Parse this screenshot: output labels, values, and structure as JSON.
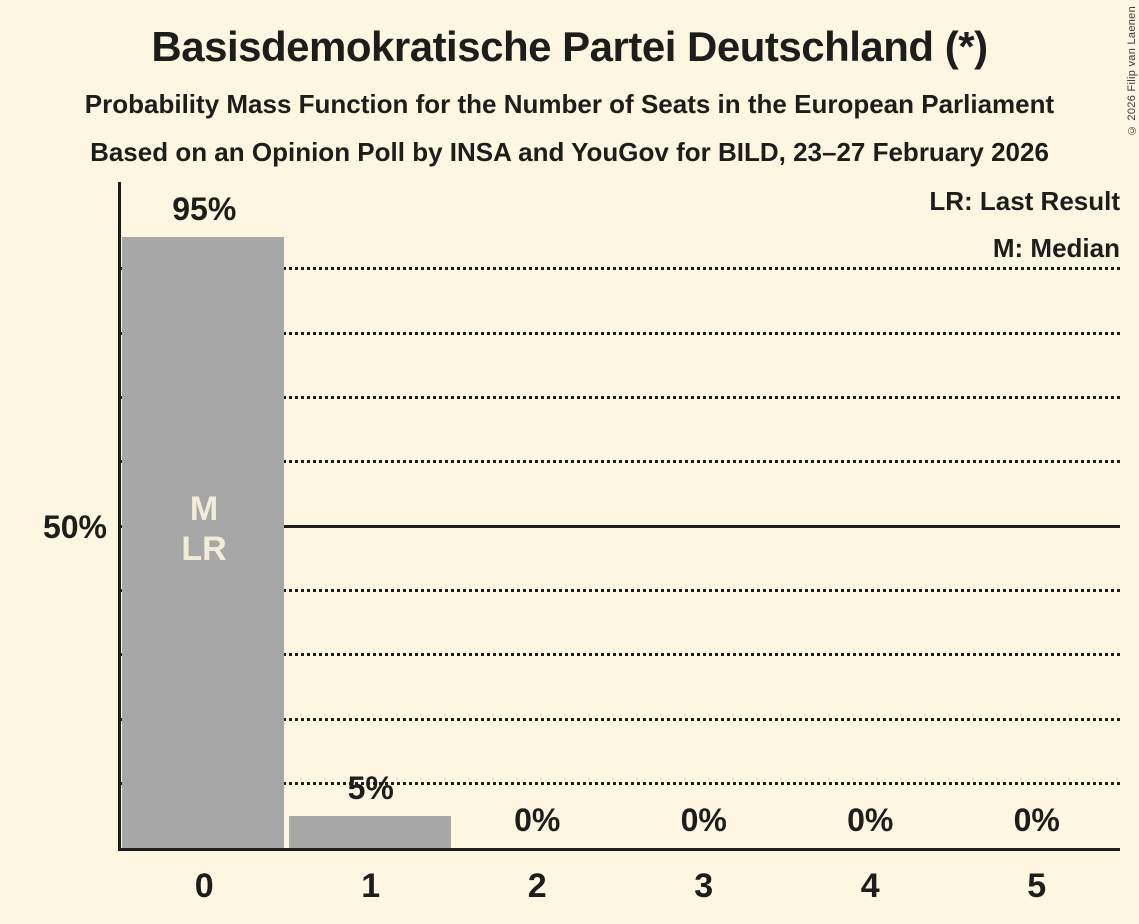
{
  "header": {
    "title": "Basisdemokratische Partei Deutschland (*)",
    "subtitle_line1": "Probability Mass Function for the Number of Seats in the European Parliament",
    "subtitle_line2": "Based on an Opinion Poll by INSA and YouGov for BILD, 23–27 February 2026"
  },
  "legend": {
    "lr": "LR: Last Result",
    "m": "M: Median"
  },
  "y_axis": {
    "label_50": "50%"
  },
  "copyright": "© 2026 Filip van Laenen",
  "chart_data": {
    "type": "bar",
    "title": "Basisdemokratische Partei Deutschland (*)",
    "subtitle": "Probability Mass Function for the Number of Seats in the European Parliament",
    "source_note": "Based on an Opinion Poll by INSA and YouGov for BILD, 23–27 February 2026",
    "categories": [
      "0",
      "1",
      "2",
      "3",
      "4",
      "5"
    ],
    "values": [
      95,
      5,
      0,
      0,
      0,
      0
    ],
    "value_labels": [
      "95%",
      "5%",
      "0%",
      "0%",
      "0%",
      "0%"
    ],
    "xlabel": "",
    "ylabel": "",
    "ylim": [
      0,
      103
    ],
    "y_tick_labeled": {
      "50": "50%"
    },
    "gridlines_pct": [
      10,
      20,
      30,
      40,
      50,
      60,
      70,
      80,
      90
    ],
    "solid_gridline_pct": 50,
    "grid_style": "dotted",
    "legend_entries": [
      "LR: Last Result",
      "M: Median"
    ],
    "legend_position": "top-right",
    "median_seat": "0",
    "last_result_seat": "0",
    "bar_annotations": [
      "M",
      "LR"
    ],
    "colors": {
      "background": "#fdf6e1",
      "bar": "#a7a7a7",
      "ink": "#1d1d1b",
      "annotation_text": "#f2ecd9"
    }
  }
}
